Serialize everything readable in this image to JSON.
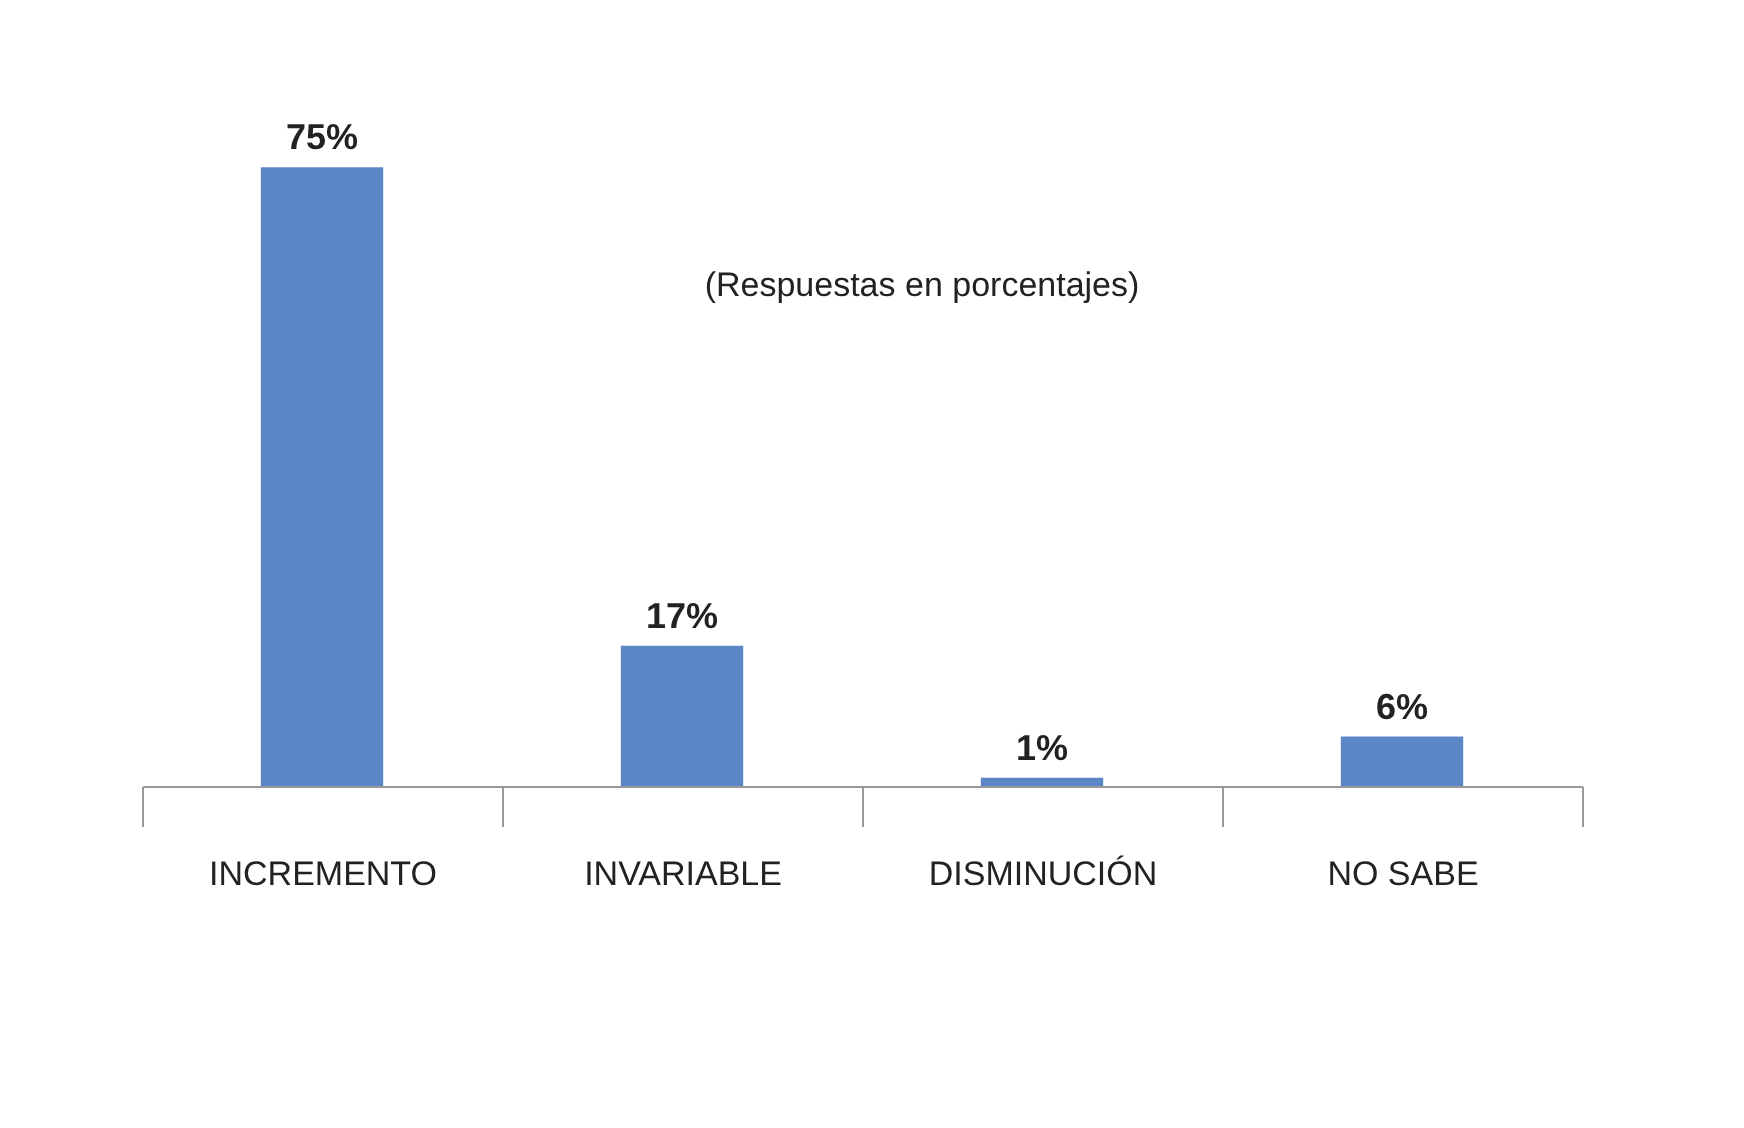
{
  "chart_data": {
    "type": "bar",
    "categories": [
      "INCREMENTO",
      "INVARIABLE",
      "DISMINUCIÓN",
      "NO SABE"
    ],
    "values": [
      75,
      17,
      1,
      6
    ],
    "value_labels": [
      "75%",
      "17%",
      "1%",
      "6%"
    ],
    "color": "#5b87c7",
    "annotations": [
      "(Respuestas en porcentajes)"
    ]
  }
}
